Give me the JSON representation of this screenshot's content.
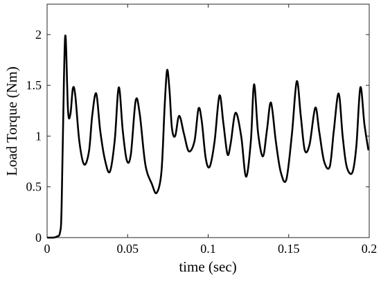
{
  "chart_data": {
    "type": "line",
    "title": "",
    "xlabel": "time (sec)",
    "ylabel": "Load Torque (Nm)",
    "xlim": [
      0,
      0.2
    ],
    "ylim": [
      0,
      2.3
    ],
    "grid": false,
    "x_ticks": [
      0,
      0.05,
      0.1,
      0.15,
      0.2
    ],
    "x_tick_labels": [
      "0",
      "0.05",
      "0.1",
      "0.15",
      "0.2"
    ],
    "y_ticks": [
      0,
      0.5,
      1,
      1.5,
      2
    ],
    "y_tick_labels": [
      "0",
      "0.5",
      "1",
      "1.5",
      "2"
    ],
    "series": [
      {
        "color": "#000000",
        "x": [
          0,
          0.004,
          0.006,
          0.008,
          0.009,
          0.0105,
          0.0115,
          0.013,
          0.0145,
          0.016,
          0.0175,
          0.02,
          0.023,
          0.026,
          0.028,
          0.0305,
          0.033,
          0.036,
          0.039,
          0.042,
          0.0445,
          0.047,
          0.0495,
          0.052,
          0.055,
          0.0575,
          0.061,
          0.065,
          0.068,
          0.071,
          0.073,
          0.0745,
          0.076,
          0.0775,
          0.0795,
          0.082,
          0.085,
          0.088,
          0.0915,
          0.094,
          0.096,
          0.0985,
          0.101,
          0.104,
          0.107,
          0.1095,
          0.112,
          0.114,
          0.117,
          0.1205,
          0.1235,
          0.1265,
          0.1285,
          0.131,
          0.134,
          0.1365,
          0.139,
          0.142,
          0.145,
          0.1485,
          0.152,
          0.155,
          0.1575,
          0.16,
          0.163,
          0.1665,
          0.169,
          0.172,
          0.1755,
          0.178,
          0.181,
          0.1835,
          0.186,
          0.1895,
          0.192,
          0.1945,
          0.197,
          0.1995
        ],
        "y": [
          0,
          0,
          0.01,
          0.05,
          0.3,
          1.6,
          1.98,
          1.25,
          1.22,
          1.47,
          1.4,
          0.95,
          0.72,
          0.85,
          1.2,
          1.42,
          1.05,
          0.76,
          0.65,
          0.96,
          1.48,
          1.05,
          0.76,
          0.82,
          1.35,
          1.22,
          0.72,
          0.53,
          0.44,
          0.65,
          1.3,
          1.65,
          1.45,
          1.08,
          1.0,
          1.2,
          1.02,
          0.85,
          0.95,
          1.27,
          1.15,
          0.78,
          0.7,
          0.95,
          1.4,
          1.12,
          0.82,
          0.93,
          1.23,
          1.0,
          0.6,
          0.95,
          1.51,
          1.03,
          0.8,
          1.06,
          1.33,
          0.95,
          0.65,
          0.57,
          1.02,
          1.54,
          1.2,
          0.86,
          0.92,
          1.28,
          1.04,
          0.75,
          0.7,
          1.05,
          1.42,
          1.0,
          0.7,
          0.64,
          0.9,
          1.48,
          1.12,
          0.86
        ]
      }
    ]
  }
}
